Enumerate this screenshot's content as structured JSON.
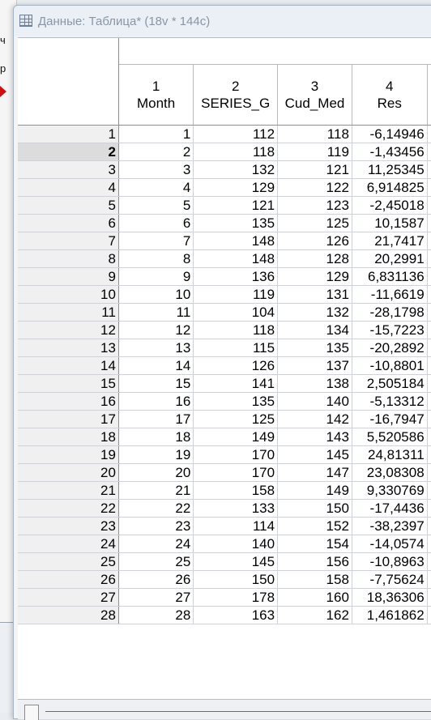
{
  "window": {
    "title": "Данные: Таблица* (18v * 144c)"
  },
  "left_strip": {
    "fragments": [
      "ч",
      "р"
    ]
  },
  "columns": [
    {
      "num": "1",
      "name": "Month"
    },
    {
      "num": "2",
      "name": "SERIES_G"
    },
    {
      "num": "3",
      "name": "Cud_Med"
    },
    {
      "num": "4",
      "name": "Res"
    }
  ],
  "selected_row": "2",
  "rows": [
    [
      "1",
      "1",
      "112",
      "118",
      "-6,14946"
    ],
    [
      "2",
      "2",
      "118",
      "119",
      "-1,43456"
    ],
    [
      "3",
      "3",
      "132",
      "121",
      "11,25345"
    ],
    [
      "4",
      "4",
      "129",
      "122",
      "6,914825"
    ],
    [
      "5",
      "5",
      "121",
      "123",
      "-2,45018"
    ],
    [
      "6",
      "6",
      "135",
      "125",
      "10,1587"
    ],
    [
      "7",
      "7",
      "148",
      "126",
      "21,7417"
    ],
    [
      "8",
      "8",
      "148",
      "128",
      "20,2991"
    ],
    [
      "9",
      "9",
      "136",
      "129",
      "6,831136"
    ],
    [
      "10",
      "10",
      "119",
      "131",
      "-11,6619"
    ],
    [
      "11",
      "11",
      "104",
      "132",
      "-28,1798"
    ],
    [
      "12",
      "12",
      "118",
      "134",
      "-15,7223"
    ],
    [
      "13",
      "13",
      "115",
      "135",
      "-20,2892"
    ],
    [
      "14",
      "14",
      "126",
      "137",
      "-10,8801"
    ],
    [
      "15",
      "15",
      "141",
      "138",
      "2,505184"
    ],
    [
      "16",
      "16",
      "135",
      "140",
      "-5,13312"
    ],
    [
      "17",
      "17",
      "125",
      "142",
      "-16,7947"
    ],
    [
      "18",
      "18",
      "149",
      "143",
      "5,520586"
    ],
    [
      "19",
      "19",
      "170",
      "145",
      "24,81311"
    ],
    [
      "20",
      "20",
      "170",
      "147",
      "23,08308"
    ],
    [
      "21",
      "21",
      "158",
      "149",
      "9,330769"
    ],
    [
      "22",
      "22",
      "133",
      "150",
      "-17,4436"
    ],
    [
      "23",
      "23",
      "114",
      "152",
      "-38,2397"
    ],
    [
      "24",
      "24",
      "140",
      "154",
      "-14,0574"
    ],
    [
      "25",
      "25",
      "145",
      "156",
      "-10,8963"
    ],
    [
      "26",
      "26",
      "150",
      "158",
      "-7,75624"
    ],
    [
      "27",
      "27",
      "178",
      "160",
      "18,36306"
    ],
    [
      "28",
      "28",
      "163",
      "162",
      "1,461862"
    ]
  ]
}
